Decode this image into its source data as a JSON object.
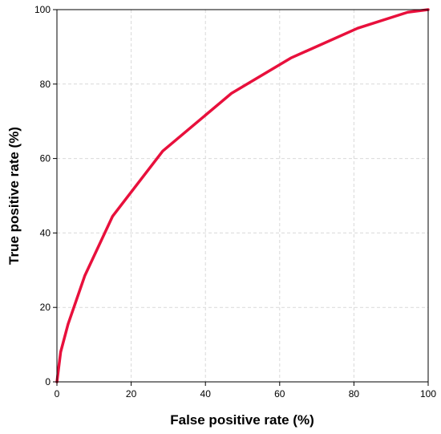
{
  "chart_data": {
    "type": "line",
    "title": "",
    "xlabel": "False positive rate (%)",
    "ylabel": "True positive rate (%)",
    "xlim": [
      0,
      100
    ],
    "ylim": [
      0,
      100
    ],
    "xticks": [
      0,
      20,
      40,
      60,
      80,
      100
    ],
    "yticks": [
      0,
      20,
      40,
      60,
      80,
      100
    ],
    "xtick_labels": [
      "0",
      "20",
      "40",
      "60",
      "80",
      "100"
    ],
    "ytick_labels": [
      "0",
      "20",
      "40",
      "60",
      "80",
      "100"
    ],
    "grid": true,
    "grid_style": "dashed",
    "legend": "none",
    "line_color": "#e8103c",
    "grid_color": "#d9d9d9",
    "axis_color": "#000000",
    "series": [
      {
        "x": [
          0,
          1,
          3,
          7.5,
          15,
          28.5,
          47,
          63,
          81,
          94.5,
          100
        ],
        "y": [
          0,
          8,
          15.5,
          28.5,
          44.5,
          62,
          77.5,
          87,
          95,
          99.3,
          100
        ]
      }
    ]
  }
}
